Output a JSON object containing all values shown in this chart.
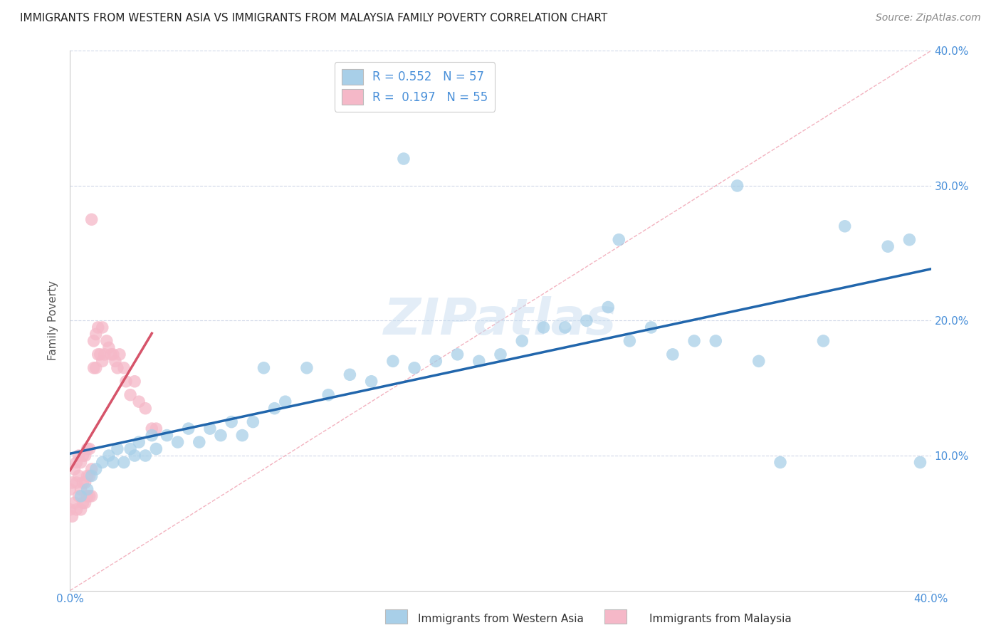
{
  "title": "IMMIGRANTS FROM WESTERN ASIA VS IMMIGRANTS FROM MALAYSIA FAMILY POVERTY CORRELATION CHART",
  "source": "Source: ZipAtlas.com",
  "ylabel": "Family Poverty",
  "legend_bottom": [
    "Immigrants from Western Asia",
    "Immigrants from Malaysia"
  ],
  "R_blue": 0.552,
  "N_blue": 57,
  "R_pink": 0.197,
  "N_pink": 55,
  "xlim": [
    0,
    0.4
  ],
  "ylim": [
    0,
    0.4
  ],
  "background_color": "#ffffff",
  "blue_color": "#a8cfe8",
  "pink_color": "#f5b8c8",
  "blue_line_color": "#2166ac",
  "pink_line_color": "#d6546a",
  "diag_line_color": "#f0a0b0",
  "tick_color": "#4a90d9",
  "grid_color": "#d0d8e8",
  "watermark_color": "#c8ddf0",
  "watermark": "ZIPatlas",
  "title_fontsize": 11,
  "source_fontsize": 10,
  "blue_scatter_x": [
    0.005,
    0.008,
    0.01,
    0.012,
    0.015,
    0.018,
    0.02,
    0.022,
    0.025,
    0.028,
    0.03,
    0.032,
    0.035,
    0.038,
    0.04,
    0.045,
    0.05,
    0.055,
    0.06,
    0.065,
    0.07,
    0.075,
    0.08,
    0.085,
    0.09,
    0.095,
    0.1,
    0.11,
    0.12,
    0.13,
    0.14,
    0.15,
    0.155,
    0.16,
    0.17,
    0.18,
    0.19,
    0.2,
    0.21,
    0.22,
    0.23,
    0.24,
    0.25,
    0.255,
    0.26,
    0.27,
    0.28,
    0.29,
    0.3,
    0.31,
    0.32,
    0.33,
    0.35,
    0.36,
    0.38,
    0.39,
    0.395
  ],
  "blue_scatter_y": [
    0.07,
    0.075,
    0.085,
    0.09,
    0.095,
    0.1,
    0.095,
    0.105,
    0.095,
    0.105,
    0.1,
    0.11,
    0.1,
    0.115,
    0.105,
    0.115,
    0.11,
    0.12,
    0.11,
    0.12,
    0.115,
    0.125,
    0.115,
    0.125,
    0.165,
    0.135,
    0.14,
    0.165,
    0.145,
    0.16,
    0.155,
    0.17,
    0.32,
    0.165,
    0.17,
    0.175,
    0.17,
    0.175,
    0.185,
    0.195,
    0.195,
    0.2,
    0.21,
    0.26,
    0.185,
    0.195,
    0.175,
    0.185,
    0.185,
    0.3,
    0.17,
    0.095,
    0.185,
    0.27,
    0.255,
    0.26,
    0.095
  ],
  "pink_scatter_x": [
    0.0,
    0.0,
    0.001,
    0.001,
    0.002,
    0.002,
    0.003,
    0.003,
    0.003,
    0.004,
    0.004,
    0.004,
    0.005,
    0.005,
    0.005,
    0.006,
    0.006,
    0.006,
    0.007,
    0.007,
    0.007,
    0.008,
    0.008,
    0.008,
    0.009,
    0.009,
    0.009,
    0.01,
    0.01,
    0.01,
    0.011,
    0.011,
    0.012,
    0.012,
    0.013,
    0.013,
    0.014,
    0.015,
    0.015,
    0.016,
    0.017,
    0.018,
    0.019,
    0.02,
    0.021,
    0.022,
    0.023,
    0.025,
    0.026,
    0.028,
    0.03,
    0.032,
    0.035,
    0.038,
    0.04
  ],
  "pink_scatter_y": [
    0.06,
    0.075,
    0.055,
    0.08,
    0.065,
    0.09,
    0.06,
    0.08,
    0.095,
    0.07,
    0.085,
    0.1,
    0.06,
    0.075,
    0.095,
    0.065,
    0.08,
    0.1,
    0.065,
    0.08,
    0.1,
    0.07,
    0.085,
    0.105,
    0.07,
    0.085,
    0.105,
    0.07,
    0.09,
    0.275,
    0.165,
    0.185,
    0.165,
    0.19,
    0.175,
    0.195,
    0.175,
    0.17,
    0.195,
    0.175,
    0.185,
    0.18,
    0.175,
    0.175,
    0.17,
    0.165,
    0.175,
    0.165,
    0.155,
    0.145,
    0.155,
    0.14,
    0.135,
    0.12,
    0.12
  ]
}
